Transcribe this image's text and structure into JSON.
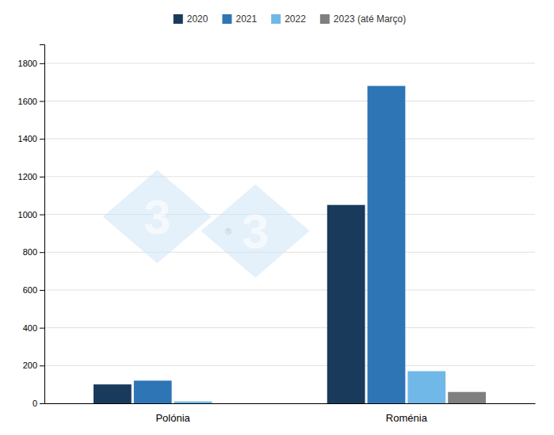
{
  "chart_data": {
    "type": "bar",
    "categories": [
      "Polónia",
      "Roménia"
    ],
    "series": [
      {
        "name": "2020",
        "color": "#1a3a5c",
        "values": [
          100,
          1050
        ]
      },
      {
        "name": "2021",
        "color": "#2e75b6",
        "values": [
          120,
          1680
        ]
      },
      {
        "name": "2022",
        "color": "#70b8e8",
        "values": [
          10,
          170
        ]
      },
      {
        "name": "2023 (até Março)",
        "color": "#7f7f7f",
        "values": [
          0,
          60
        ]
      }
    ],
    "ylim": [
      0,
      1900
    ],
    "yticks": [
      0,
      200,
      400,
      600,
      800,
      1000,
      1200,
      1400,
      1600,
      1800
    ],
    "grid": true,
    "legend": "top",
    "annotations": [
      "3",
      "3",
      "®"
    ]
  }
}
